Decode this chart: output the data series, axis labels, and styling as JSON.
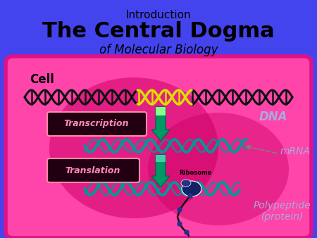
{
  "bg_color": "#4444ee",
  "cell_bg": "#ff44aa",
  "cell_edge": "#dd1188",
  "title_intro": "Introduction",
  "title_main": "The Central Dogma",
  "title_sub": "of Molecular Biology",
  "label_cell": "Cell",
  "label_dna": "DNA",
  "label_mrna": "mRNA",
  "label_transcription": "Transcription",
  "label_translation": "Translation",
  "label_ribosome": "Ribosome",
  "label_polypeptide": "Polypeptide\n(protein)",
  "dna_color_black": "#111111",
  "dna_color_yellow": "#dddd00",
  "arrow_color_top": "#88ff44",
  "arrow_color_bot": "#008888",
  "mrna_color": "#009999",
  "glow_color": "#cc0066",
  "label_dna_color": "#aaaadd",
  "label_mrna_color": "#aaaadd",
  "label_poly_color": "#aaaadd",
  "trans_box_color": "#220011",
  "trans_text_color": "#ff88bb"
}
